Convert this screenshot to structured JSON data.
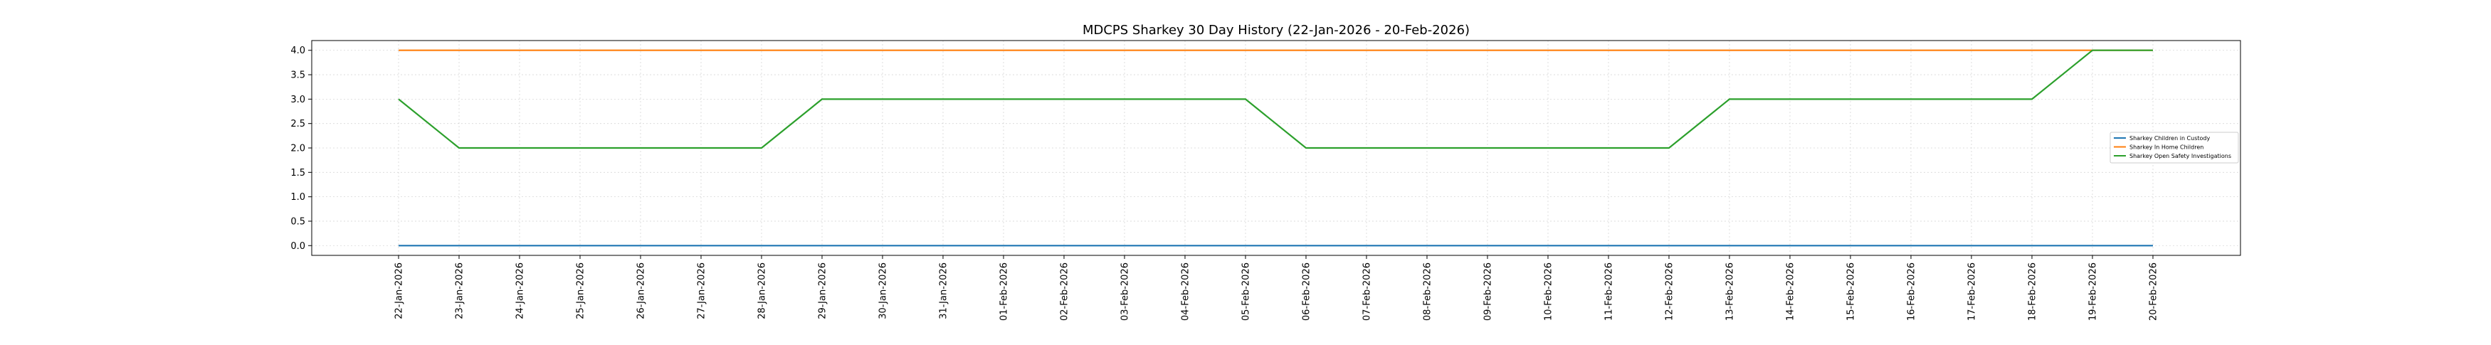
{
  "chart_data": {
    "type": "line",
    "title": "MDCPS Sharkey 30 Day History (22-Jan-2026 - 20-Feb-2026)",
    "xlabel": "",
    "ylabel": "",
    "categories": [
      "22-Jan-2026",
      "23-Jan-2026",
      "24-Jan-2026",
      "25-Jan-2026",
      "26-Jan-2026",
      "27-Jan-2026",
      "28-Jan-2026",
      "29-Jan-2026",
      "30-Jan-2026",
      "31-Jan-2026",
      "01-Feb-2026",
      "02-Feb-2026",
      "03-Feb-2026",
      "04-Feb-2026",
      "05-Feb-2026",
      "06-Feb-2026",
      "07-Feb-2026",
      "08-Feb-2026",
      "09-Feb-2026",
      "10-Feb-2026",
      "11-Feb-2026",
      "12-Feb-2026",
      "13-Feb-2026",
      "14-Feb-2026",
      "15-Feb-2026",
      "16-Feb-2026",
      "17-Feb-2026",
      "18-Feb-2026",
      "19-Feb-2026",
      "20-Feb-2026"
    ],
    "series": [
      {
        "name": "Sharkey Children in Custody",
        "color": "#1f77b4",
        "values": [
          0,
          0,
          0,
          0,
          0,
          0,
          0,
          0,
          0,
          0,
          0,
          0,
          0,
          0,
          0,
          0,
          0,
          0,
          0,
          0,
          0,
          0,
          0,
          0,
          0,
          0,
          0,
          0,
          0,
          0
        ]
      },
      {
        "name": "Sharkey In Home Children",
        "color": "#ff7f0e",
        "values": [
          4,
          4,
          4,
          4,
          4,
          4,
          4,
          4,
          4,
          4,
          4,
          4,
          4,
          4,
          4,
          4,
          4,
          4,
          4,
          4,
          4,
          4,
          4,
          4,
          4,
          4,
          4,
          4,
          4,
          4
        ]
      },
      {
        "name": "Sharkey Open Safety Investigations",
        "color": "#2ca02c",
        "values": [
          3,
          2,
          2,
          2,
          2,
          2,
          2,
          3,
          3,
          3,
          3,
          3,
          3,
          3,
          3,
          2,
          2,
          2,
          2,
          2,
          2,
          2,
          3,
          3,
          3,
          3,
          3,
          3,
          4,
          4
        ]
      }
    ],
    "yticks": [
      "0.0",
      "0.5",
      "1.0",
      "1.5",
      "2.0",
      "2.5",
      "3.0",
      "3.5",
      "4.0"
    ],
    "ylim": [
      -0.2,
      4.2
    ],
    "grid": true,
    "legend_position": "center-right"
  }
}
